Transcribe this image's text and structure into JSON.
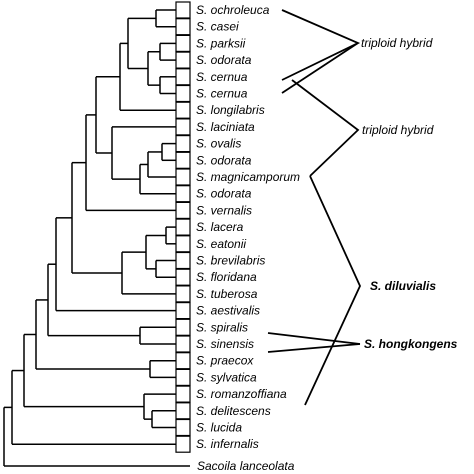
{
  "tree": {
    "taxa": [
      "S. ochroleuca",
      "S. casei",
      "S. parksii",
      "S. odorata",
      "S. cernua",
      "S. cernua",
      "S. longilabris",
      "S. laciniata",
      "S. ovalis",
      "S. odorata",
      "S. magnicamporum",
      "S. odorata",
      "S. vernalis",
      "S. lacera",
      "S. eatonii",
      "S. brevilabris",
      "S. floridana",
      "S. tuberosa",
      "S. aestivalis",
      "S. spiralis",
      "S. sinensis",
      "S. praecox",
      "S. sylvatica",
      "S. romanzoffiana",
      "S. delitescens",
      "S. lucida",
      "S. infernalis"
    ],
    "outgroup": "Sacoila lanceolata"
  },
  "annotations": {
    "triploid_hybrid_1": "triploid hybrid",
    "triploid_hybrid_2": "triploid hybrid",
    "s_diluvialis": "S. diluvialis",
    "s_hongkongens": "S. hongkongens"
  }
}
